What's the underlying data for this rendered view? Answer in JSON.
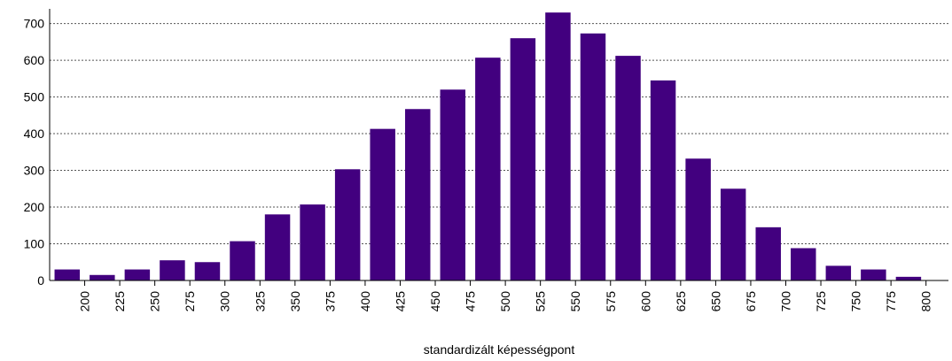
{
  "chart_data": {
    "type": "histogram",
    "x_label": "standardizált képességpont",
    "bins": [
      175,
      200,
      225,
      250,
      275,
      300,
      325,
      350,
      375,
      400,
      425,
      450,
      475,
      500,
      525,
      550,
      575,
      600,
      625,
      650,
      675,
      700,
      725,
      750,
      775,
      800
    ],
    "values": [
      30,
      15,
      30,
      55,
      50,
      107,
      180,
      207,
      303,
      413,
      467,
      520,
      607,
      660,
      730,
      673,
      612,
      545,
      332,
      250,
      145,
      88,
      40,
      30,
      10
    ],
    "color": "#42007f",
    "xlim": [
      175,
      816
    ],
    "ylim": [
      0,
      740
    ],
    "xticks": [
      200,
      225,
      250,
      275,
      300,
      325,
      350,
      375,
      400,
      425,
      450,
      475,
      500,
      525,
      550,
      575,
      600,
      625,
      650,
      675,
      700,
      725,
      750,
      775,
      800
    ],
    "yticks": [
      0,
      100,
      200,
      300,
      400,
      500,
      600,
      700
    ],
    "grid": true
  }
}
